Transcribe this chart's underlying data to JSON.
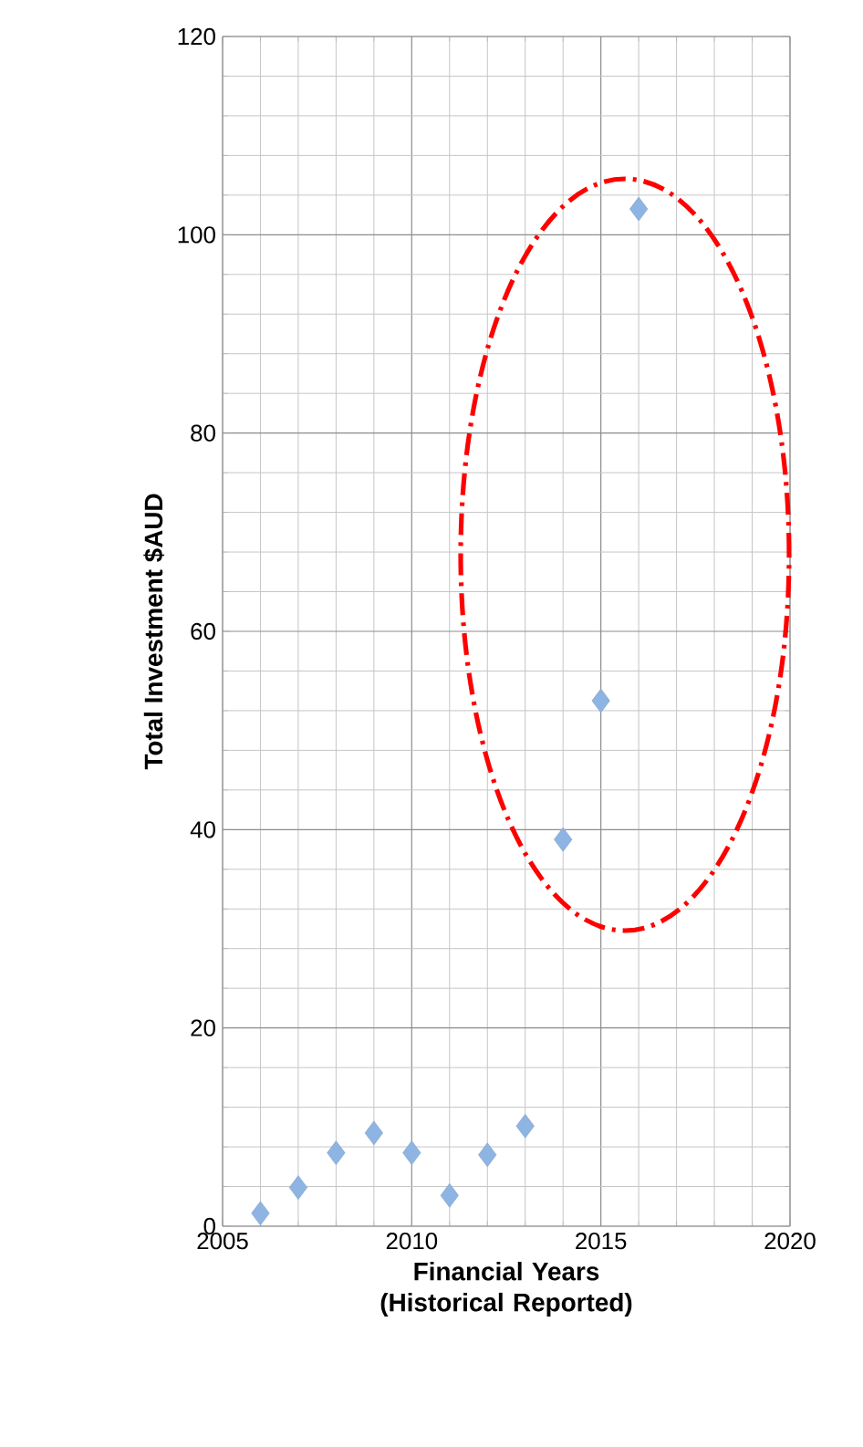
{
  "chart_data": {
    "type": "scatter",
    "xlabel": "Financial Years (Historical Reported)",
    "ylabel": "Total Investment $AUD",
    "x": [
      2006,
      2007,
      2008,
      2009,
      2010,
      2011,
      2012,
      2013,
      2014,
      2015,
      2016
    ],
    "values": [
      1.3,
      3.9,
      7.4,
      9.4,
      7.4,
      3.1,
      7.2,
      10.1,
      39,
      53,
      102.6
    ],
    "color": "#8db4e2",
    "marker": "diamond",
    "grid": true,
    "xlim": [
      2005,
      2020
    ],
    "ylim": [
      0,
      120
    ],
    "xticks": [
      2005,
      2010,
      2015,
      2020
    ],
    "yticks": [
      0,
      20,
      40,
      60,
      80,
      100,
      120
    ]
  }
}
